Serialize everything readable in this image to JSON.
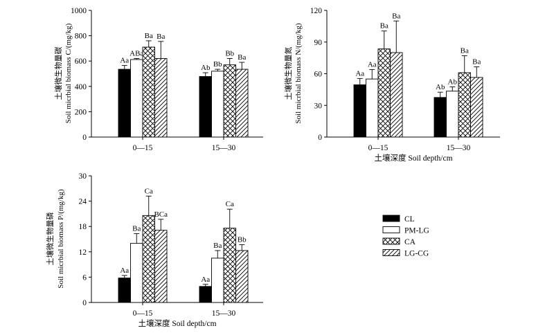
{
  "figure": {
    "legend": [
      {
        "name": "CL",
        "pattern": "solid"
      },
      {
        "name": "PM-LG",
        "pattern": "white"
      },
      {
        "name": "CA",
        "pattern": "crosshatch"
      },
      {
        "name": "LG-CG",
        "pattern": "diagonal"
      }
    ]
  },
  "chart_data": [
    {
      "type": "bar",
      "ylabel_cn": "土壤微生物量碳",
      "ylabel_en": "Soil  micrbial biomass C/(mg/kg)",
      "xlabel": "",
      "categories": [
        "0—15",
        "15—30"
      ],
      "ylim": [
        0,
        1000
      ],
      "yticks": [
        "0",
        "200",
        "400",
        "600",
        "800",
        "1000"
      ],
      "series": [
        {
          "name": "CL",
          "values": [
            535,
            478
          ],
          "errors": [
            30,
            30
          ],
          "labels": [
            "Aa",
            "Ab"
          ]
        },
        {
          "name": "PM-LG",
          "values": [
            612,
            520
          ],
          "errors": [
            8,
            15
          ],
          "labels": [
            "ABa",
            "Bb"
          ]
        },
        {
          "name": "CA",
          "values": [
            710,
            570
          ],
          "errors": [
            50,
            50
          ],
          "labels": [
            "Ba",
            "Bb"
          ]
        },
        {
          "name": "LG-CG",
          "values": [
            620,
            535
          ],
          "errors": [
            135,
            55
          ],
          "labels": [
            "Ba",
            "Ba"
          ]
        }
      ]
    },
    {
      "type": "bar",
      "ylabel_cn": "土壤微生物量氮",
      "ylabel_en": "Soil  micrbial biomass N/(mg/kg)",
      "xlabel": "土壤深度 Soil depth/cm",
      "categories": [
        "0—15",
        "15—30"
      ],
      "ylim": [
        0,
        120
      ],
      "yticks": [
        "0",
        "30",
        "60",
        "90",
        "120"
      ],
      "series": [
        {
          "name": "CL",
          "values": [
            49.5,
            37.5
          ],
          "errors": [
            6,
            5
          ],
          "labels": [
            "Aa",
            "Ab"
          ]
        },
        {
          "name": "PM-LG",
          "values": [
            55,
            43.5
          ],
          "errors": [
            9,
            4
          ],
          "labels": [
            "Aa",
            "Ab"
          ]
        },
        {
          "name": "CA",
          "values": [
            83.5,
            61
          ],
          "errors": [
            17,
            16
          ],
          "labels": [
            "Ba",
            "Ba"
          ]
        },
        {
          "name": "LG-CG",
          "values": [
            80,
            56.5
          ],
          "errors": [
            30,
            10
          ],
          "labels": [
            "Ba",
            "Ba"
          ]
        }
      ]
    },
    {
      "type": "bar",
      "ylabel_cn": "土壤微生物量磷",
      "ylabel_en": "Soil  micrbial biomass P/(mg/kg)",
      "xlabel": "土壤深度 Soil depth/cm",
      "categories": [
        "0—15",
        "15—30"
      ],
      "ylim": [
        0,
        30
      ],
      "yticks": [
        "0",
        "6",
        "12",
        "18",
        "24",
        "30"
      ],
      "series": [
        {
          "name": "CL",
          "values": [
            5.8,
            3.8
          ],
          "errors": [
            0.6,
            0.5
          ],
          "labels": [
            "Aa",
            "Aa"
          ]
        },
        {
          "name": "PM-LG",
          "values": [
            14,
            10.5
          ],
          "errors": [
            2.3,
            1.8
          ],
          "labels": [
            "Ba",
            "Ba"
          ]
        },
        {
          "name": "CA",
          "values": [
            20.6,
            17.6
          ],
          "errors": [
            4.6,
            4.5
          ],
          "labels": [
            "Ca",
            "Ca"
          ]
        },
        {
          "name": "LG-CG",
          "values": [
            17.1,
            12.3
          ],
          "errors": [
            2.6,
            1.4
          ],
          "labels": [
            "BCa",
            "Bb"
          ]
        }
      ]
    }
  ]
}
